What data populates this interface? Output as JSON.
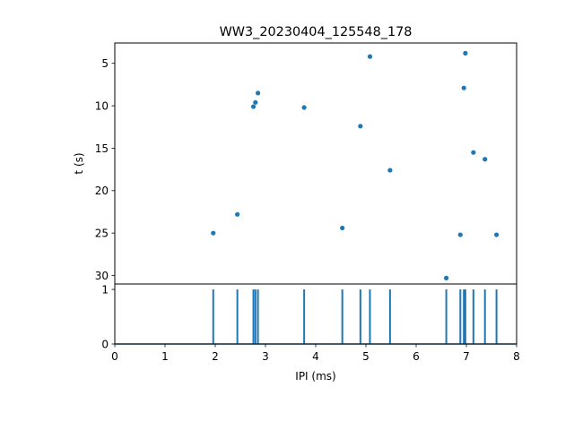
{
  "chart_data": [
    {
      "type": "scatter",
      "title": "WW3_20230404_125548_178",
      "xlabel": "",
      "ylabel": "t (s)",
      "xlim": [
        0,
        8
      ],
      "ylim": [
        31,
        2.6
      ],
      "y_inverted": true,
      "yticks": [
        "5",
        "10",
        "15",
        "20",
        "25",
        "30"
      ],
      "grid": false,
      "color": "#1f77b4",
      "points": [
        {
          "x": 1.96,
          "y": 25.0
        },
        {
          "x": 2.44,
          "y": 22.8
        },
        {
          "x": 2.76,
          "y": 10.1
        },
        {
          "x": 2.8,
          "y": 9.6
        },
        {
          "x": 2.85,
          "y": 8.5
        },
        {
          "x": 3.77,
          "y": 10.2
        },
        {
          "x": 4.53,
          "y": 24.4
        },
        {
          "x": 4.89,
          "y": 12.4
        },
        {
          "x": 5.08,
          "y": 4.2
        },
        {
          "x": 5.48,
          "y": 17.6
        },
        {
          "x": 6.6,
          "y": 30.3
        },
        {
          "x": 6.88,
          "y": 25.2
        },
        {
          "x": 6.95,
          "y": 7.9
        },
        {
          "x": 6.98,
          "y": 3.8
        },
        {
          "x": 7.14,
          "y": 15.5
        },
        {
          "x": 7.37,
          "y": 16.3
        },
        {
          "x": 7.6,
          "y": 25.2
        }
      ]
    },
    {
      "type": "line",
      "xlabel": "IPI (ms)",
      "ylabel": "",
      "xlim": [
        0,
        8
      ],
      "ylim": [
        0,
        1.1
      ],
      "xticks": [
        "0",
        "1",
        "2",
        "3",
        "4",
        "5",
        "6",
        "7",
        "8"
      ],
      "yticks": [
        "0",
        "1"
      ],
      "grid": false,
      "color": "#1f77b4",
      "spikes_x": [
        1.96,
        2.44,
        2.76,
        2.8,
        2.85,
        3.77,
        4.53,
        4.89,
        5.08,
        5.48,
        6.6,
        6.88,
        6.95,
        6.98,
        7.14,
        7.37,
        7.6
      ],
      "spike_height": 1
    }
  ]
}
